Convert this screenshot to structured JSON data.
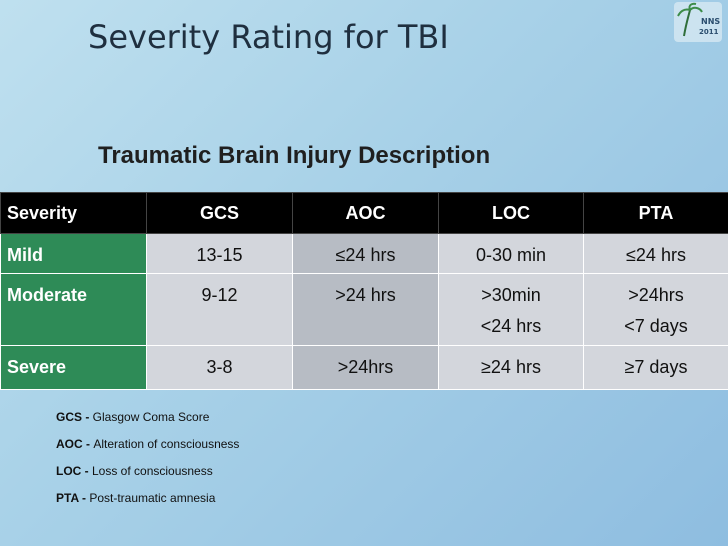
{
  "slide": {
    "title": "Severity Rating for TBI",
    "subtitle": "Traumatic Brain Injury Description",
    "logo_text": "NNS 2011"
  },
  "table": {
    "headers": [
      "Severity",
      "GCS",
      "AOC",
      "LOC",
      "PTA"
    ],
    "rows": [
      {
        "severity": "Mild",
        "gcs": "13-15",
        "aoc": "≤24 hrs",
        "loc": [
          "0-30 min"
        ],
        "pta": [
          "≤24 hrs"
        ]
      },
      {
        "severity": "Moderate",
        "gcs": "9-12",
        "aoc": ">24 hrs",
        "loc": [
          ">30min",
          "<24 hrs"
        ],
        "pta": [
          ">24hrs",
          "<7 days"
        ]
      },
      {
        "severity": "Severe",
        "gcs": "3-8",
        "aoc": ">24hrs",
        "loc": [
          "≥24 hrs"
        ],
        "pta": [
          "≥7 days"
        ]
      }
    ]
  },
  "legend": [
    {
      "abbr": "GCS - ",
      "text": "Glasgow Coma Score"
    },
    {
      "abbr": "AOC - ",
      "text": "Alteration of consciousness"
    },
    {
      "abbr": "LOC - ",
      "text": "Loss of consciousness"
    },
    {
      "abbr": "PTA - ",
      "text": " Post-traumatic amnesia"
    }
  ],
  "colors": {
    "severity_green": "#2e8b57",
    "header_black": "#000000",
    "cell_light": "#d3d6dc",
    "cell_dark": "#b7bcc4"
  }
}
